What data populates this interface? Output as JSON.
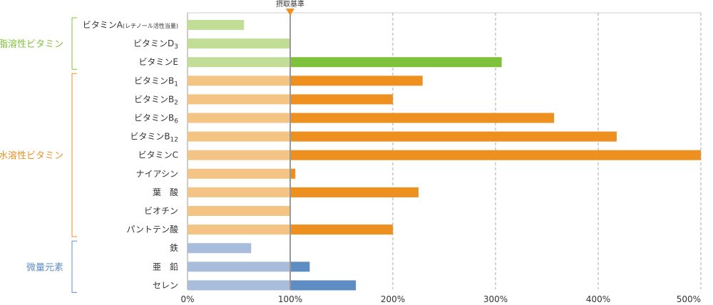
{
  "chart_data": {
    "type": "bar",
    "orientation": "horizontal",
    "reference_label": "摂取基準",
    "reference_value": 100,
    "xlim": [
      0,
      500
    ],
    "xticks": [
      0,
      100,
      200,
      300,
      400,
      500
    ],
    "xtick_labels": [
      "0%",
      "100%",
      "200%",
      "300%",
      "400%",
      "500%"
    ],
    "categories": [
      {
        "base": "ビタミンA",
        "suffix": "(レチノール活性当量)",
        "sub": "",
        "value": 55,
        "group": 0
      },
      {
        "base": "ビタミンD",
        "suffix": "",
        "sub": "3",
        "value": 100,
        "group": 0
      },
      {
        "base": "ビタミンE",
        "suffix": "",
        "sub": "",
        "value": 306,
        "group": 0
      },
      {
        "base": "ビタミンB",
        "suffix": "",
        "sub": "1",
        "value": 229,
        "group": 1
      },
      {
        "base": "ビタミンB",
        "suffix": "",
        "sub": "2",
        "value": 200,
        "group": 1
      },
      {
        "base": "ビタミンB",
        "suffix": "",
        "sub": "6",
        "value": 357,
        "group": 1
      },
      {
        "base": "ビタミンB",
        "suffix": "",
        "sub": "12",
        "value": 418,
        "group": 1
      },
      {
        "base": "ビタミンC",
        "suffix": "",
        "sub": "",
        "value": 500,
        "group": 1
      },
      {
        "base": "ナイアシン",
        "suffix": "",
        "sub": "",
        "value": 105,
        "group": 1
      },
      {
        "base": "葉　酸",
        "suffix": "",
        "sub": "",
        "value": 225,
        "group": 1
      },
      {
        "base": "ビオチン",
        "suffix": "",
        "sub": "",
        "value": 100,
        "group": 1
      },
      {
        "base": "パントテン酸",
        "suffix": "",
        "sub": "",
        "value": 200,
        "group": 1
      },
      {
        "base": "鉄",
        "suffix": "",
        "sub": "",
        "value": 62,
        "group": 2
      },
      {
        "base": "亜　鉛",
        "suffix": "",
        "sub": "",
        "value": 119,
        "group": 2
      },
      {
        "base": "セレン",
        "suffix": "",
        "sub": "",
        "value": 164,
        "group": 2
      }
    ],
    "groups": [
      {
        "label": "脂溶性ビタミン",
        "light": "#c2de96",
        "dark": "#80c13c"
      },
      {
        "label": "水溶性ビタミン",
        "light": "#f4c484",
        "dark": "#ee901f"
      },
      {
        "label": "微量元素",
        "light": "#a7bddb",
        "dark": "#5e8dc4"
      }
    ],
    "colors": {
      "axis": "#999999",
      "gridline": "#aaaaaa",
      "reference_line": "#999999",
      "reference_marker": "#ee901f"
    }
  }
}
